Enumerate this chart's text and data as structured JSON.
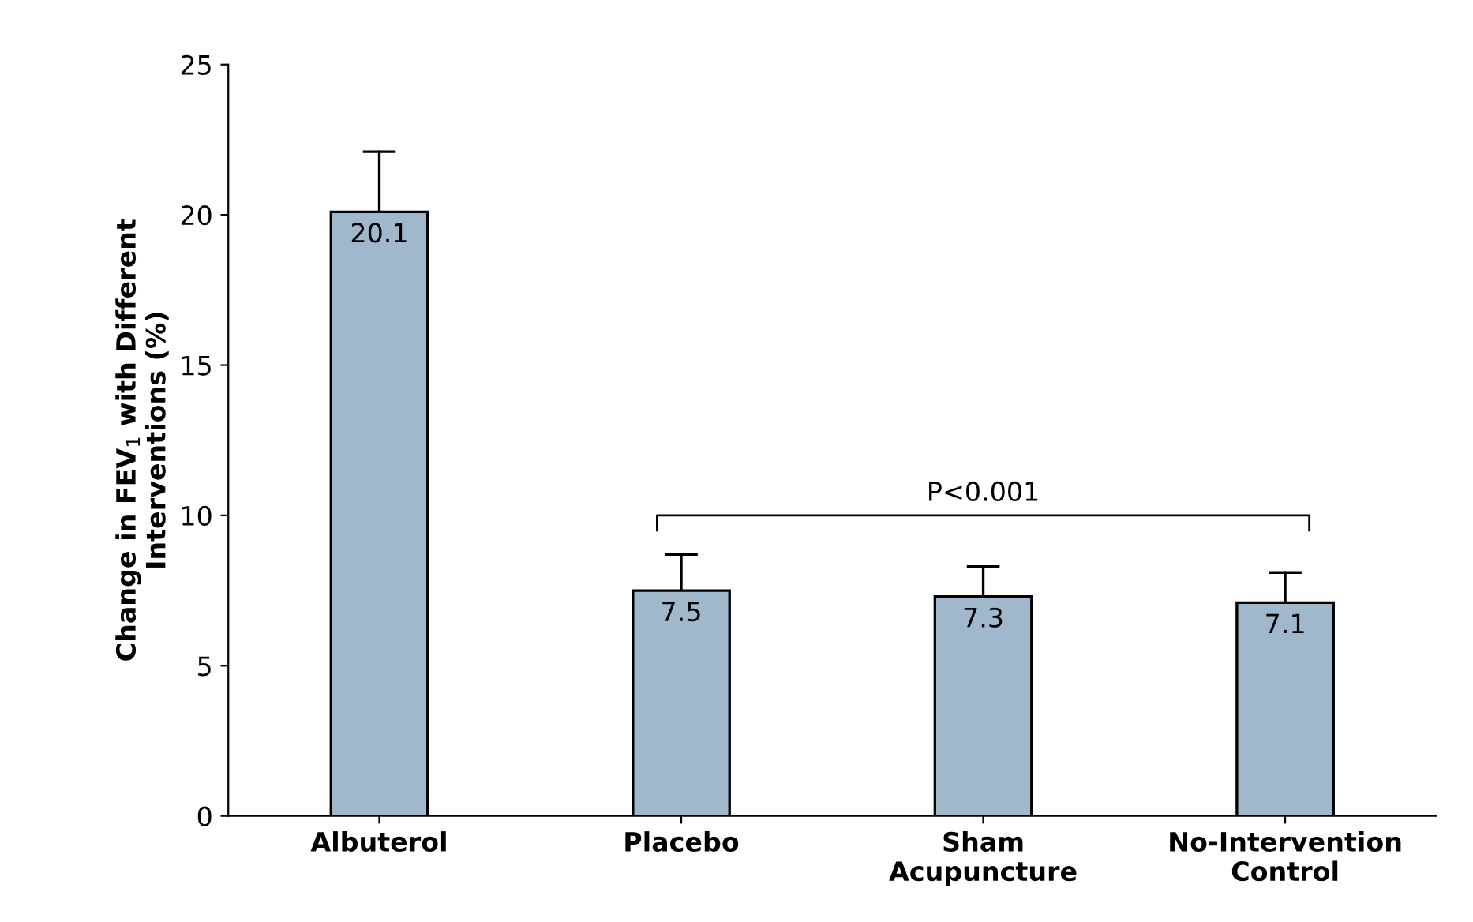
{
  "chart_data": {
    "type": "bar",
    "ylabel": "Change in FEV$_{1}$ with Different\nInterventions (%)",
    "categories": [
      "Albuterol",
      "Placebo",
      "Sham\nAcupuncture",
      "No-Intervention\nControl"
    ],
    "values": [
      20.1,
      7.5,
      7.3,
      7.1
    ],
    "errors": [
      [
        20.1,
        22.1
      ],
      [
        7.5,
        8.7
      ],
      [
        7.3,
        8.3
      ],
      [
        7.1,
        8.1
      ]
    ],
    "color": "#9fb8cb",
    "data_labels": true,
    "ylim": [
      0,
      25
    ],
    "yticks": [
      0,
      5,
      10,
      15,
      20,
      25
    ],
    "annotations": [
      "P<0.001"
    ],
    "grid": false,
    "legend": false
  }
}
